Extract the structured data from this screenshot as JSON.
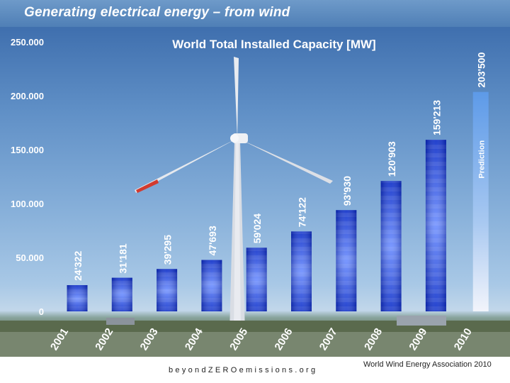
{
  "slide": {
    "title": "Generating electrical energy – from wind",
    "footer_left": "beyondZEROemissions.org",
    "footer_right": "World Wind Energy Association 2010"
  },
  "colors": {
    "header": "#5b89bf",
    "bar_edge": "#0a2cc8",
    "bar_center": "#5a7dff",
    "prediction_top": "#6aa4ec",
    "prediction_bottom": "#e6ecf8",
    "label": "#ffffff"
  },
  "chart_data": {
    "type": "bar",
    "title": "World Total Installed Capacity [MW]",
    "categories": [
      "2001",
      "2002",
      "2003",
      "2004",
      "2005",
      "2006",
      "2007",
      "2008",
      "2009",
      "2010"
    ],
    "values": [
      24322,
      31181,
      39295,
      47693,
      59024,
      74122,
      93930,
      120903,
      159213,
      203500
    ],
    "value_labels": [
      "24'322",
      "31'181",
      "39'295",
      "47'693",
      "59'024",
      "74'122",
      "93'930",
      "120'903",
      "159'213",
      "203'500"
    ],
    "prediction": {
      "category": "2010",
      "label": "Prediction"
    },
    "y_ticks": [
      0,
      50000,
      100000,
      150000,
      200000,
      250000
    ],
    "y_tick_labels": [
      "0",
      "50.000",
      "100.000",
      "150.000",
      "200.000",
      "250.000"
    ],
    "ylim": [
      0,
      250000
    ],
    "grid": false,
    "legend": "none"
  }
}
